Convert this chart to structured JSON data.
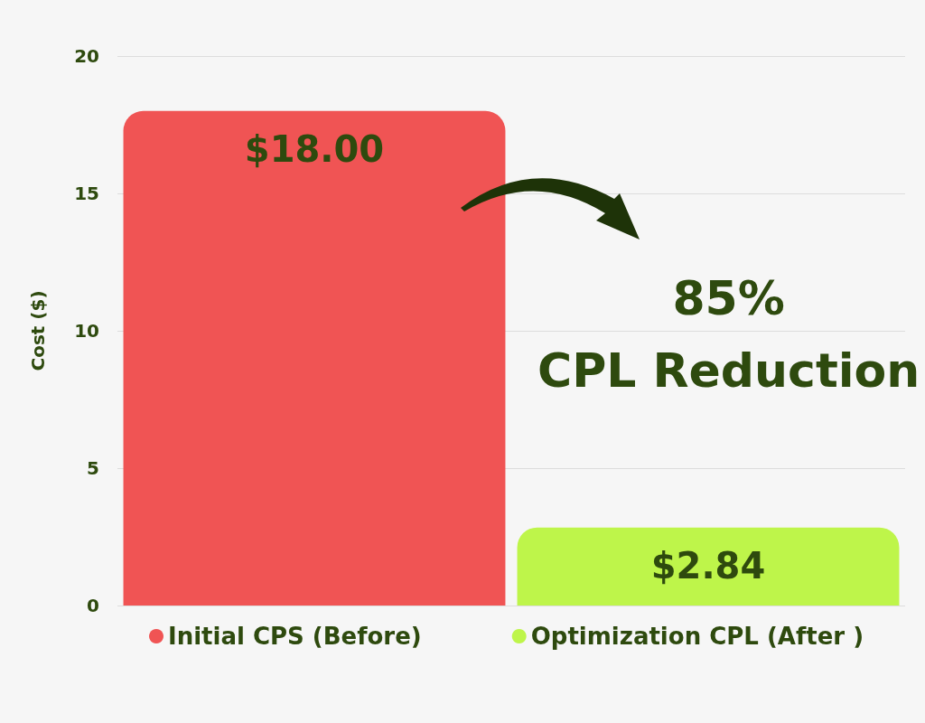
{
  "chart_data": {
    "type": "bar",
    "ylabel": "Cost ($)",
    "categories": [
      null,
      null
    ],
    "series": [
      {
        "name": "Initial CPS (Before)",
        "color": "#f05454",
        "values": [
          18,
          null
        ],
        "value_labels": [
          "$18.00",
          null
        ]
      },
      {
        "name": "Optimization CPL (After )",
        "color": "#bef54a",
        "values": [
          null,
          2.84
        ],
        "value_labels": [
          null,
          "$2.84"
        ]
      }
    ],
    "ylim": [
      0,
      20
    ],
    "yticks": [
      0,
      5,
      10,
      15,
      20
    ],
    "grid": "y",
    "legend": "bottom",
    "annotations": [
      "85%\nCPL Reduction"
    ]
  }
}
